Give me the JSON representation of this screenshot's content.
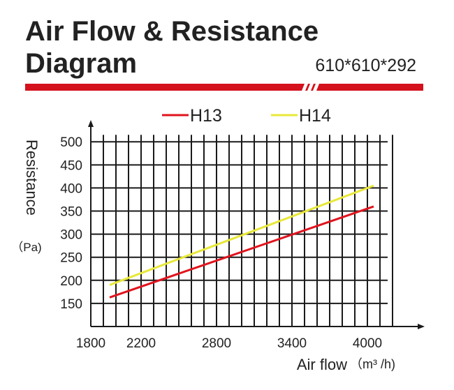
{
  "header": {
    "title_line_1": "Air Flow & Resistance",
    "title_line_2": "Diagram",
    "size_label": "610*610*292"
  },
  "colors": {
    "banner_red": "#d4111c",
    "h13": "#e0141e",
    "h14": "#e8e83a",
    "grid": "#1a1a1a",
    "text": "#222222"
  },
  "chart_data": {
    "type": "line",
    "title": "",
    "xlabel": "Air flow",
    "xunit": "（m³ /h)",
    "ylabel": "Resistance",
    "yunit": "（Pa)",
    "xticks": [
      1800,
      2200,
      2800,
      3400,
      4000
    ],
    "yticks": [
      150,
      200,
      250,
      300,
      350,
      400,
      450,
      500
    ],
    "xlim": [
      1800,
      4400
    ],
    "ylim": [
      100,
      520
    ],
    "grid": true,
    "legend_position": "top",
    "series": [
      {
        "name": "H13",
        "color": "#e0141e",
        "x": [
          1950,
          4050
        ],
        "y": [
          163,
          360
        ]
      },
      {
        "name": "H14",
        "color": "#e8e83a",
        "x": [
          1950,
          4050
        ],
        "y": [
          190,
          405
        ]
      }
    ]
  }
}
